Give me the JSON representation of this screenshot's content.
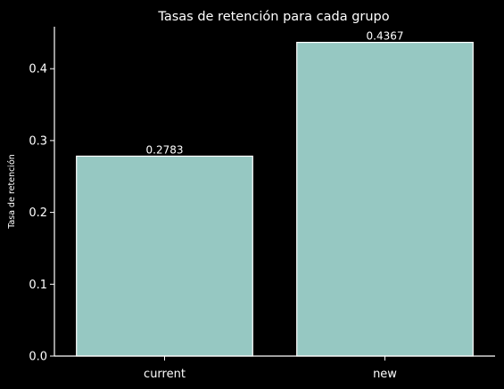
{
  "chart_data": {
    "type": "bar",
    "title": "Tasas de retención para cada grupo",
    "xlabel": "",
    "ylabel": "Tasa de retención",
    "categories": [
      "current",
      "new"
    ],
    "values": [
      0.2783,
      0.4367
    ],
    "data_labels": [
      "0.2783",
      "0.4367"
    ],
    "ylim": [
      0,
      0.4585
    ],
    "yticks": [
      0.0,
      0.1,
      0.2,
      0.3,
      0.4
    ],
    "ytick_labels": [
      "0.0",
      "0.1",
      "0.2",
      "0.3",
      "0.4"
    ],
    "grid": false,
    "legend": "none",
    "colors": {
      "background": "#000000",
      "bar_fill": "#96c8c2",
      "bar_edge": "#ffffff",
      "axis": "#ffffff",
      "text": "#ffffff"
    }
  }
}
